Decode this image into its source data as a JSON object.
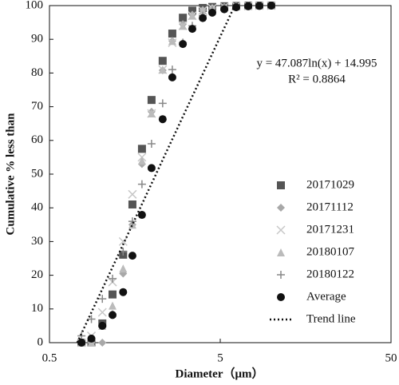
{
  "chart_data": {
    "type": "scatter",
    "x_label": "Diameter（μm）",
    "y_label": "Cumulative % less than",
    "xscale": "log",
    "xlim": [
      0.5,
      50
    ],
    "xticks": [
      0.5,
      5,
      50
    ],
    "ylim": [
      0,
      100
    ],
    "yticks": [
      0,
      10,
      20,
      30,
      40,
      50,
      60,
      70,
      80,
      90,
      100
    ],
    "legend": "right",
    "annotations": [
      "y = 47.087ln(x) + 14.995",
      "R² = 0.8864"
    ],
    "x": [
      0.77,
      0.88,
      1.02,
      1.17,
      1.35,
      1.53,
      1.74,
      1.98,
      2.3,
      2.62,
      3.02,
      3.43,
      3.95,
      4.49,
      5.28,
      6.2,
      7.29,
      8.47,
      9.95
    ],
    "series": [
      {
        "name": "20171029",
        "color": "#555555",
        "marker": "square",
        "values": [
          0,
          0,
          5.7,
          14.3,
          26.1,
          41,
          57.5,
          72,
          83.6,
          91.7,
          96.4,
          98.5,
          99.3,
          99.6,
          99.8,
          99.9,
          100,
          100,
          100
        ]
      },
      {
        "name": "20171112",
        "color": "#a8a8a8",
        "marker": "diamond",
        "values": [
          0,
          0,
          0,
          8.5,
          20.5,
          35,
          53,
          68.5,
          80.8,
          89.5,
          94.5,
          97.3,
          98.7,
          99.3,
          99.6,
          99.8,
          99.9,
          100,
          100
        ]
      },
      {
        "name": "20171231",
        "color": "#c8c8c8",
        "marker": "cross",
        "values": [
          0,
          2,
          9,
          18,
          30,
          44,
          55,
          68,
          81,
          89,
          94,
          97,
          98.5,
          99.2,
          99.6,
          99.8,
          99.9,
          100,
          100
        ]
      },
      {
        "name": "20180107",
        "color": "#bbbbbb",
        "marker": "triangle",
        "values": [
          0,
          0,
          5,
          11,
          22,
          35,
          54,
          68,
          81,
          89.5,
          94,
          97,
          98.6,
          99.3,
          99.6,
          99.8,
          99.9,
          100,
          100
        ]
      },
      {
        "name": "20180122",
        "color": "#888888",
        "marker": "plus",
        "values": [
          2,
          7,
          13,
          19,
          27,
          36,
          47,
          59,
          71,
          81,
          89,
          94,
          97,
          98.6,
          99.3,
          99.7,
          99.9,
          100,
          100
        ]
      },
      {
        "name": "Average",
        "color": "#111111",
        "marker": "circle",
        "values": [
          0,
          1.2,
          5,
          8.2,
          15,
          25.8,
          37.9,
          51.8,
          66.3,
          78.7,
          88.6,
          93.1,
          96.3,
          97.9,
          98.9,
          99.5,
          99.8,
          99.9,
          100
        ]
      },
      {
        "name": "Trend line",
        "color": "#111111",
        "marker": "dotted-line",
        "x": [
          0.727,
          6.08
        ],
        "values": [
          0,
          100
        ]
      }
    ]
  }
}
